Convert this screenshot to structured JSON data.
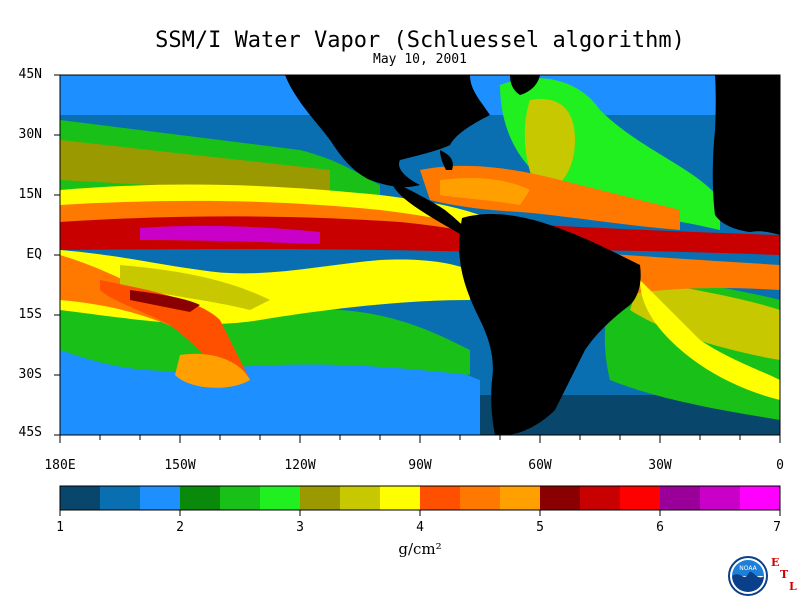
{
  "title": "SSM/I Water Vapor (Schluessel algorithm)",
  "subtitle": "May 10, 2001",
  "lat_labels": [
    "45N",
    "30N",
    "15N",
    "EQ",
    "15S",
    "30S",
    "45S"
  ],
  "lon_labels": [
    "180E",
    "150W",
    "120W",
    "90W",
    "60W",
    "30W",
    "0"
  ],
  "colorbar": {
    "ticks": [
      "1",
      "2",
      "3",
      "4",
      "5",
      "6",
      "7"
    ],
    "unit": "g/cm²",
    "range": [
      1,
      7
    ],
    "colors": [
      "#08476b",
      "#0a6fb0",
      "#1e8fff",
      "#0a8a0a",
      "#18c018",
      "#20f020",
      "#9a9a00",
      "#c8c800",
      "#ffff00",
      "#ff5000",
      "#ff7800",
      "#ffa000",
      "#8a0000",
      "#c80000",
      "#ff0000",
      "#9a0099",
      "#c800c8",
      "#ff00ff"
    ]
  },
  "land_color": "#000000",
  "logo": {
    "agency_mark": "NOAA",
    "lab_letters": [
      "E",
      "T",
      "L"
    ]
  }
}
